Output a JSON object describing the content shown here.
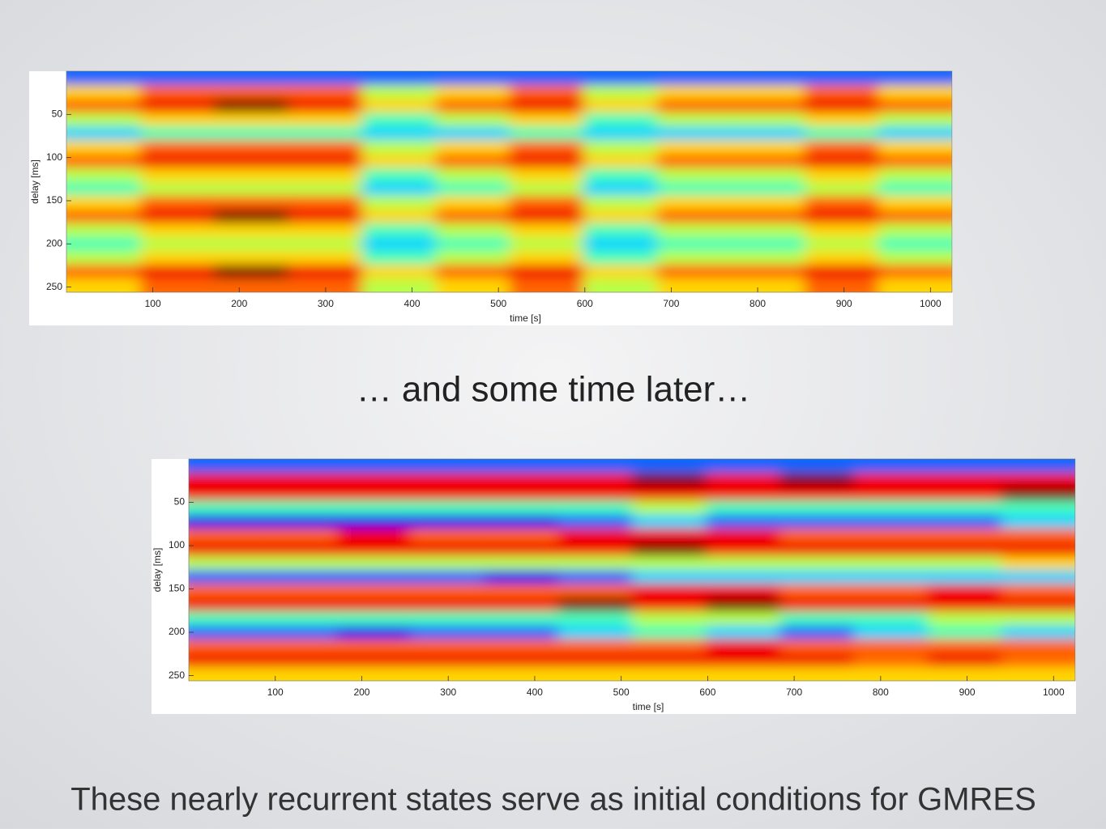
{
  "chart_data": [
    {
      "type": "heatmap",
      "xlabel": "time [s]",
      "ylabel": "delay [ms]",
      "xlim": [
        0,
        1025
      ],
      "ylim": [
        0,
        256
      ],
      "y_inverted": true,
      "zlim": [
        0,
        9
      ],
      "xticks": [
        100,
        200,
        300,
        400,
        500,
        600,
        700,
        800,
        900,
        1000
      ],
      "yticks": [
        50,
        100,
        150,
        200,
        250
      ],
      "values": [
        [
          2,
          2,
          2,
          2,
          2,
          2,
          2,
          2,
          2,
          2,
          2,
          2
        ],
        [
          6,
          7,
          7,
          7,
          5,
          6,
          7,
          5,
          6,
          6,
          7,
          6
        ],
        [
          7,
          8,
          9,
          8,
          6,
          7,
          8,
          6,
          7,
          7,
          8,
          7
        ],
        [
          5,
          6,
          6,
          6,
          4,
          5,
          6,
          4,
          5,
          5,
          6,
          5
        ],
        [
          3,
          4,
          4,
          4,
          3,
          3,
          4,
          3,
          3,
          3,
          4,
          3
        ],
        [
          6,
          7,
          7,
          7,
          5,
          6,
          7,
          5,
          6,
          6,
          7,
          6
        ],
        [
          7,
          8,
          8,
          8,
          6,
          7,
          8,
          6,
          7,
          7,
          8,
          7
        ],
        [
          5,
          6,
          6,
          6,
          4,
          5,
          6,
          4,
          5,
          5,
          6,
          5
        ],
        [
          4,
          5,
          5,
          5,
          3,
          4,
          5,
          3,
          4,
          4,
          5,
          4
        ],
        [
          6,
          7,
          7,
          7,
          5,
          6,
          7,
          5,
          6,
          6,
          7,
          6
        ],
        [
          7,
          8,
          9,
          8,
          6,
          7,
          8,
          6,
          7,
          7,
          8,
          7
        ],
        [
          5,
          6,
          6,
          6,
          4,
          5,
          6,
          4,
          5,
          5,
          6,
          5
        ],
        [
          4,
          5,
          5,
          5,
          3,
          4,
          5,
          3,
          4,
          4,
          5,
          4
        ],
        [
          5,
          6,
          6,
          6,
          4,
          5,
          6,
          4,
          5,
          5,
          6,
          5
        ],
        [
          7,
          8,
          9,
          8,
          6,
          7,
          8,
          6,
          7,
          7,
          8,
          7
        ],
        [
          6,
          7,
          7,
          7,
          5,
          6,
          7,
          5,
          6,
          6,
          7,
          6
        ]
      ]
    },
    {
      "type": "heatmap",
      "xlabel": "time [s]",
      "ylabel": "delay [ms]",
      "xlim": [
        0,
        1025
      ],
      "ylim": [
        0,
        256
      ],
      "y_inverted": true,
      "zlim": [
        0,
        9
      ],
      "xticks": [
        100,
        200,
        300,
        400,
        500,
        600,
        700,
        800,
        900,
        1000
      ],
      "yticks": [
        50,
        100,
        150,
        200,
        250
      ],
      "values": [
        [
          2,
          2,
          2,
          2,
          2,
          2,
          2,
          2,
          2,
          2,
          2,
          2
        ],
        [
          8,
          8,
          8,
          8,
          8,
          8,
          9,
          8,
          9,
          8,
          8,
          8
        ],
        [
          8,
          8,
          8,
          8,
          8,
          8,
          8,
          8,
          8,
          8,
          8,
          9
        ],
        [
          4,
          4,
          4,
          4,
          4,
          4,
          5,
          4,
          4,
          4,
          4,
          4
        ],
        [
          1,
          1,
          1,
          1,
          1,
          2,
          3,
          2,
          2,
          2,
          2,
          3
        ],
        [
          7,
          7,
          8,
          7,
          7,
          8,
          8,
          8,
          7,
          7,
          7,
          7
        ],
        [
          8,
          8,
          8,
          8,
          8,
          8,
          9,
          8,
          8,
          8,
          8,
          8
        ],
        [
          5,
          5,
          5,
          5,
          5,
          5,
          5,
          5,
          5,
          5,
          5,
          6
        ],
        [
          2,
          2,
          2,
          2,
          1,
          2,
          3,
          3,
          3,
          3,
          3,
          3
        ],
        [
          7,
          7,
          7,
          7,
          7,
          7,
          8,
          8,
          7,
          7,
          8,
          7
        ],
        [
          8,
          8,
          8,
          8,
          8,
          9,
          8,
          9,
          8,
          8,
          8,
          8
        ],
        [
          4,
          4,
          4,
          4,
          4,
          4,
          5,
          5,
          4,
          4,
          5,
          5
        ],
        [
          2,
          2,
          1,
          2,
          2,
          3,
          4,
          3,
          2,
          3,
          4,
          3
        ],
        [
          7,
          7,
          7,
          7,
          7,
          7,
          7,
          8,
          7,
          7,
          7,
          7
        ],
        [
          8,
          8,
          8,
          8,
          8,
          8,
          8,
          8,
          8,
          7,
          8,
          7
        ],
        [
          6,
          6,
          6,
          6,
          6,
          6,
          6,
          6,
          6,
          6,
          6,
          6
        ]
      ]
    }
  ],
  "slide": {
    "middle_text": "… and some time later…",
    "caption": "These nearly recurrent states serve as initial conditions for GMRES"
  }
}
